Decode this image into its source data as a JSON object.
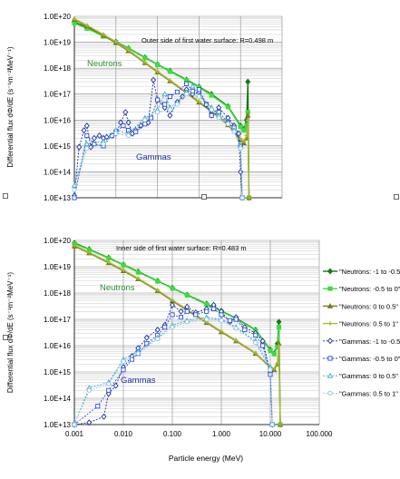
{
  "chart_data": [
    {
      "type": "line",
      "title": "",
      "annotation": "Outer side of first water surface: R=0.498 m",
      "ylabel": "Differential flux dΦ/dE  (s⁻¹m⁻²MeV⁻¹)",
      "xlabel": "",
      "xscale": "log",
      "yscale": "log",
      "xlim": [
        0.001,
        100
      ],
      "ylim": [
        10000000000000.0,
        1e+20
      ],
      "yticklabels": [
        "1.0E+13",
        "1.0E+14",
        "1.0E+15",
        "1.0E+16",
        "1.0E+17",
        "1.0E+18",
        "1.0E+19",
        "1.0E+20"
      ],
      "xticklabels": [],
      "grid": true,
      "group_labels": [
        {
          "text": "Neutrons",
          "color": "#2e8b2e"
        },
        {
          "text": "Gammas",
          "color": "#1a2f9c"
        }
      ],
      "series": [
        {
          "name": "\"Neutrons: -1 to -0.5\"",
          "color": "#0f7a0f",
          "marker": "diamond",
          "dashed": false,
          "x": [
            0.001,
            0.002,
            0.005,
            0.01,
            0.02,
            0.05,
            0.1,
            0.2,
            0.5,
            1,
            2,
            5,
            10,
            12,
            14,
            15,
            16
          ],
          "y": [
            6e+19,
            3.7e+19,
            1.8e+19,
            1.05e+19,
            5.8e+18,
            2.6e+18,
            1.4e+18,
            7.8e+17,
            3.6e+17,
            1.9e+17,
            1e+17,
            3.4e+16,
            6000000000000000.0,
            4500000000000000.0,
            1e+16,
            3e+17,
            10000000000000.0
          ]
        },
        {
          "name": "\"Neutrons: -0.5 to 0\"",
          "color": "#3ddc3d",
          "marker": "square",
          "dashed": false,
          "x": [
            0.001,
            0.002,
            0.005,
            0.01,
            0.02,
            0.05,
            0.1,
            0.2,
            0.5,
            1,
            2,
            5,
            10,
            12,
            14,
            15,
            16
          ],
          "y": [
            5.4e+19,
            3.4e+19,
            1.7e+19,
            1e+19,
            5.6e+18,
            2.5e+18,
            1.35e+18,
            7.5e+17,
            3.4e+17,
            1.8e+17,
            9e+16,
            3.2e+16,
            5500000000000000.0,
            4000000000000000.0,
            6000000000000000.0,
            2e+16,
            10000000000000.0
          ]
        },
        {
          "name": "\"Neutrons: 0 to 0.5\"",
          "color": "#7d7a14",
          "marker": "triangle",
          "dashed": false,
          "x": [
            0.001,
            0.002,
            0.005,
            0.01,
            0.02,
            0.05,
            0.1,
            0.2,
            0.5,
            1,
            2,
            5,
            10,
            12,
            14,
            15,
            16
          ],
          "y": [
            7.5e+19,
            4.2e+19,
            1.8e+19,
            9.5e+18,
            4.6e+18,
            1.6e+18,
            7e+17,
            3.2e+17,
            1.1e+17,
            4.8e+16,
            2.1e+16,
            6500000000000000.0,
            1700000000000000.0,
            1300000000000000.0,
            2000000000000000.0,
            1.5e+16,
            10000000000000.0
          ]
        },
        {
          "name": "\"Neutrons: 0.5 to 1\"",
          "color": "#a8b83a",
          "marker": "plus",
          "dashed": false,
          "x": [
            0.001,
            0.002,
            0.005,
            0.01,
            0.02,
            0.05,
            0.1,
            0.2,
            0.5,
            1,
            2,
            5,
            10,
            12,
            14,
            15,
            16
          ],
          "y": [
            8e+19,
            4.5e+19,
            2e+19,
            1.05e+19,
            5e+18,
            1.7e+18,
            7.5e+17,
            3.4e+17,
            1.2e+17,
            5.2e+16,
            2.3e+16,
            7000000000000000.0,
            1900000000000000.0,
            1500000000000000.0,
            2500000000000000.0,
            1e+16,
            10000000000000.0
          ]
        },
        {
          "name": "\"Gammas: -1 to -0.5\"",
          "color": "#1a2f9c",
          "marker": "diamond-open",
          "dashed": true,
          "x": [
            0.001,
            0.0013,
            0.0017,
            0.002,
            0.0025,
            0.003,
            0.004,
            0.005,
            0.006,
            0.008,
            0.01,
            0.013,
            0.017,
            0.02,
            0.025,
            0.03,
            0.04,
            0.05,
            0.06,
            0.08,
            0.1,
            0.15,
            0.2,
            0.3,
            0.4,
            0.5,
            0.7,
            1,
            1.5,
            2,
            3,
            5,
            7,
            9,
            10,
            11
          ],
          "y": [
            12000000000000.0,
            900000000000000.0,
            4000000000000000.0,
            6000000000000000.0,
            900000000000000.0,
            2000000000000000.0,
            2500000000000000.0,
            2000000000000000.0,
            2200000000000000.0,
            2500000000000000.0,
            3000000000000000.0,
            8000000000000000.0,
            2e+16,
            8000000000000000.0,
            3000000000000000.0,
            4000000000000000.0,
            6000000000000000.0,
            1e+16,
            8000000000000000.0,
            3.5e+17,
            6e+16,
            3e+16,
            1.5e+16,
            5e+16,
            8e+16,
            1.5e+17,
            1e+17,
            1.2e+17,
            4e+16,
            1.5e+16,
            3e+16,
            1.2e+16,
            6000000000000000.0,
            3000000000000000.0,
            100000000000000.0,
            10000000000000.0
          ]
        },
        {
          "name": "\"Gammas: -0.5 to 0\"",
          "color": "#2a4fd8",
          "marker": "square-open",
          "dashed": true,
          "x": [
            0.001,
            0.002,
            0.003,
            0.005,
            0.008,
            0.01,
            0.015,
            0.02,
            0.03,
            0.05,
            0.07,
            0.1,
            0.15,
            0.2,
            0.3,
            0.5,
            0.7,
            1,
            1.5,
            2,
            3,
            5,
            7,
            10,
            11
          ],
          "y": [
            10000000000000.0,
            2500000000000000.0,
            1200000000000000.0,
            1000000000000000.0,
            2500000000000000.0,
            3500000000000000.0,
            6000000000000000.0,
            4000000000000000.0,
            3500000000000000.0,
            7000000000000000.0,
            1.2e+16,
            6e+16,
            4e+16,
            8e+16,
            1.2e+17,
            2.5e+17,
            1.3e+17,
            1.5e+17,
            4e+16,
            1.5e+16,
            2e+16,
            8000000000000000.0,
            5000000000000000.0,
            1000000000000000.0,
            10000000000000.0
          ]
        },
        {
          "name": "\"Gammas: 0 to 0.5\"",
          "color": "#3aa7c8",
          "marker": "triangle-open",
          "dashed": true,
          "x": [
            0.001,
            0.002,
            0.005,
            0.01,
            0.02,
            0.05,
            0.1,
            0.15,
            0.2,
            0.3,
            0.5,
            0.7,
            1,
            2,
            3,
            5,
            7,
            10,
            11
          ],
          "y": [
            30000000000000.0,
            1200000000000000.0,
            1500000000000000.0,
            4000000000000000.0,
            3000000000000000.0,
            1.2e+16,
            2.5e+16,
            1e+17,
            3e+16,
            5e+16,
            1.2e+17,
            2e+17,
            9e+16,
            3e+16,
            1.5e+16,
            8000000000000000.0,
            4000000000000000.0,
            1000000000000000.0,
            10000000000000.0
          ]
        },
        {
          "name": "\"Gammas: 0.5 to 1\"",
          "color": "#8fc3e6",
          "marker": "circle-open",
          "dashed": true,
          "x": [
            0.001,
            0.002,
            0.005,
            0.01,
            0.02,
            0.05,
            0.1,
            0.2,
            0.3,
            0.5,
            1,
            2,
            3,
            5,
            7,
            10,
            11
          ],
          "y": [
            20000000000000.0,
            800000000000000.0,
            1200000000000000.0,
            3000000000000000.0,
            2500000000000000.0,
            1e+16,
            2e+16,
            2.5e+16,
            4e+16,
            1e+17,
            8e+16,
            2.5e+16,
            1.2e+16,
            7000000000000000.0,
            3500000000000000.0,
            800000000000000.0,
            10000000000000.0
          ]
        }
      ]
    },
    {
      "type": "line",
      "title": "",
      "annotation": "Inner side of first water surface: R=0.483 m",
      "ylabel": "Differential flux dΦ/dE  (s⁻¹m⁻²MeV⁻¹)",
      "xlabel": "Particle energy (MeV)",
      "xscale": "log",
      "yscale": "log",
      "xlim": [
        0.001,
        100
      ],
      "ylim": [
        10000000000000.0,
        1e+20
      ],
      "yticklabels": [
        "1.0E+13",
        "1.0E+14",
        "1.0E+15",
        "1.0E+16",
        "1.0E+17",
        "1.0E+18",
        "1.0E+19",
        "1.0E+20"
      ],
      "xticklabels": [
        "0.001",
        "0.010",
        "0.100",
        "1.000",
        "10.000",
        "100.000"
      ],
      "grid": true,
      "legend": "right",
      "group_labels": [
        {
          "text": "Neutrons",
          "color": "#2e8b2e"
        },
        {
          "text": "Gammas",
          "color": "#1a2f9c"
        }
      ],
      "series": [
        {
          "name": "\"Neutrons: -1 to -0.5\"",
          "color": "#0f7a0f",
          "marker": "diamond",
          "dashed": false,
          "x": [
            0.001,
            0.002,
            0.005,
            0.01,
            0.02,
            0.05,
            0.1,
            0.2,
            0.5,
            1,
            2,
            5,
            10,
            12,
            14,
            15,
            16
          ],
          "y": [
            8e+19,
            4.6e+19,
            2.2e+19,
            1.2e+19,
            6.5e+18,
            2.9e+18,
            1.55e+18,
            8.5e+17,
            3.9e+17,
            2.1e+17,
            1.1e+17,
            4e+16,
            7000000000000000.0,
            5000000000000000.0,
            1.2e+16,
            8e+16,
            10000000000000.0
          ]
        },
        {
          "name": "\"Neutrons: -0.5 to 0\"",
          "color": "#3ddc3d",
          "marker": "square",
          "dashed": false,
          "x": [
            0.001,
            0.002,
            0.005,
            0.01,
            0.02,
            0.05,
            0.1,
            0.2,
            0.5,
            1,
            2,
            5,
            10,
            12,
            14,
            15,
            16
          ],
          "y": [
            7.5e+19,
            4.4e+19,
            2.1e+19,
            1.15e+19,
            6.2e+18,
            2.8e+18,
            1.5e+18,
            8.2e+17,
            3.7e+17,
            2e+17,
            1.05e+17,
            3.8e+16,
            6500000000000000.0,
            4800000000000000.0,
            9000000000000000.0,
            5e+16,
            10000000000000.0
          ]
        },
        {
          "name": "\"Neutrons: 0 to 0.5\"",
          "color": "#7d7a14",
          "marker": "triangle",
          "dashed": false,
          "x": [
            0.001,
            0.002,
            0.005,
            0.01,
            0.02,
            0.05,
            0.1,
            0.2,
            0.5,
            1,
            2,
            5,
            10,
            12,
            14,
            15,
            16
          ],
          "y": [
            6e+19,
            3.3e+19,
            1.4e+19,
            7e+18,
            3.4e+18,
            1.2e+18,
            5e+17,
            2.2e+17,
            7.5e+16,
            3.3e+16,
            1.5e+16,
            5000000000000000.0,
            1500000000000000.0,
            1200000000000000.0,
            2000000000000000.0,
            1.2e+16,
            10000000000000.0
          ]
        },
        {
          "name": "\"Neutrons: 0.5 to 1\"",
          "color": "#a8b83a",
          "marker": "plus",
          "dashed": false,
          "x": [
            0.001,
            0.002,
            0.005,
            0.01,
            0.02,
            0.05,
            0.1,
            0.2,
            0.5,
            1,
            2,
            5,
            10,
            12,
            14,
            15,
            16
          ],
          "y": [
            6.5e+19,
            3.5e+19,
            1.5e+19,
            7.5e+18,
            3.6e+18,
            1.3e+18,
            5.4e+17,
            2.4e+17,
            8e+16,
            3.5e+16,
            1.6e+16,
            5300000000000000.0,
            1600000000000000.0,
            1300000000000000.0,
            2200000000000000.0,
            1e+16,
            10000000000000.0
          ]
        },
        {
          "name": "\"Gammas: -1 to -0.5\"",
          "color": "#1a2f9c",
          "marker": "diamond-open",
          "dashed": true,
          "x": [
            0.001,
            0.002,
            0.004,
            0.005,
            0.007,
            0.01,
            0.015,
            0.02,
            0.03,
            0.05,
            0.07,
            0.1,
            0.15,
            0.2,
            0.3,
            0.5,
            0.7,
            1,
            1.5,
            2,
            3,
            5,
            7,
            10,
            11
          ],
          "y": [
            10000000000000.0,
            12000000000000.0,
            20000000000000.0,
            150000000000000.0,
            300000000000000.0,
            1500000000000000.0,
            4000000000000000.0,
            8000000000000000.0,
            2e+16,
            4e+16,
            6e+16,
            3.5e+17,
            2e+17,
            3e+17,
            1.8e+17,
            2.5e+17,
            3.5e+17,
            2e+17,
            8e+16,
            1.2e+17,
            5e+16,
            3e+16,
            1.5e+16,
            1000000000000000.0,
            10000000000000.0
          ]
        },
        {
          "name": "\"Gammas: -0.5 to 0\"",
          "color": "#2a4fd8",
          "marker": "square-open",
          "dashed": true,
          "x": [
            0.001,
            0.003,
            0.005,
            0.01,
            0.015,
            0.02,
            0.03,
            0.05,
            0.07,
            0.1,
            0.15,
            0.2,
            0.3,
            0.5,
            0.7,
            1,
            1.5,
            2,
            3,
            5,
            7,
            10,
            11
          ],
          "y": [
            10000000000000.0,
            50000000000000.0,
            200000000000000.0,
            1200000000000000.0,
            3000000000000000.0,
            5000000000000000.0,
            1.2e+16,
            2.5e+16,
            5e+16,
            1.5e+17,
            1.2e+17,
            2e+17,
            1.5e+17,
            2e+17,
            2.5e+17,
            1.5e+17,
            9e+16,
            1e+17,
            4e+16,
            2.5e+16,
            1e+16,
            800000000000000.0,
            10000000000000.0
          ]
        },
        {
          "name": "\"Gammas: 0 to 0.5\"",
          "color": "#3aa7c8",
          "marker": "triangle-open",
          "dashed": true,
          "x": [
            0.001,
            0.002,
            0.005,
            0.01,
            0.02,
            0.05,
            0.1,
            0.2,
            0.5,
            1,
            2,
            5,
            10,
            11
          ],
          "y": [
            10000000000000.0,
            250000000000000.0,
            400000000000000.0,
            3000000000000000.0,
            6000000000000000.0,
            2e+16,
            6e+16,
            9e+16,
            1.2e+17,
            1e+17,
            5e+16,
            1.5e+16,
            1500000000000000.0,
            10000000000000.0
          ]
        },
        {
          "name": "\"Gammas: 0.5 to 1\"",
          "color": "#8fc3e6",
          "marker": "circle-open",
          "dashed": true,
          "x": [
            0.001,
            0.002,
            0.005,
            0.01,
            0.02,
            0.05,
            0.1,
            0.2,
            0.5,
            1,
            2,
            5,
            10,
            11
          ],
          "y": [
            10000000000000.0,
            200000000000000.0,
            350000000000000.0,
            2500000000000000.0,
            5000000000000000.0,
            1.8e+16,
            5e+16,
            8e+16,
            1e+17,
            9e+16,
            4.5e+16,
            1.3e+16,
            1200000000000000.0,
            10000000000000.0
          ]
        }
      ]
    }
  ]
}
